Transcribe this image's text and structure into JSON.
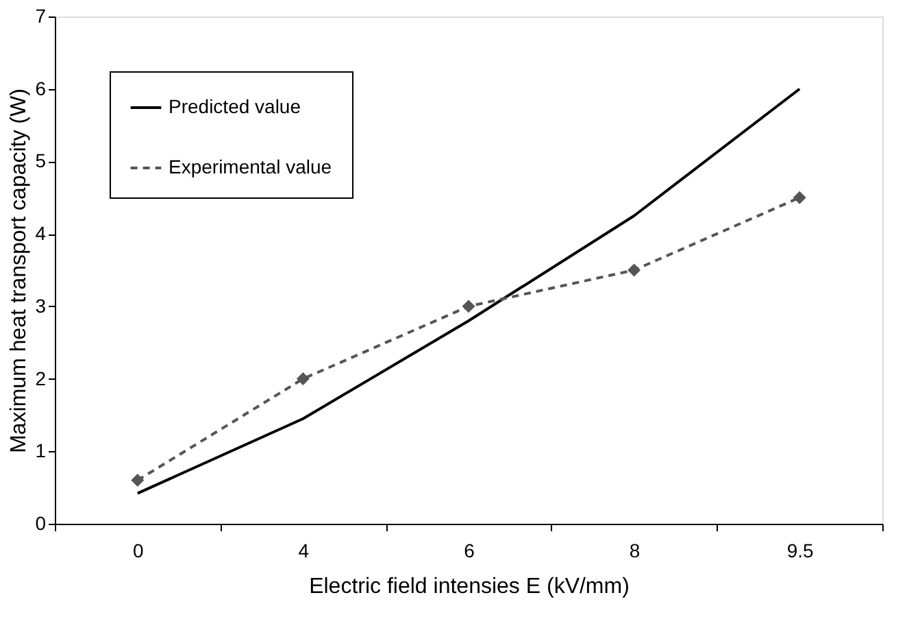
{
  "chart_data": {
    "type": "line",
    "xlabel": "Electric field intensies E (kV/mm)",
    "ylabel": "Maximum heat transport capacity (W)",
    "categories": [
      "0",
      "4",
      "6",
      "8",
      "9.5"
    ],
    "ylim": [
      0,
      7
    ],
    "yticks": [
      0,
      1,
      2,
      3,
      4,
      5,
      6,
      7
    ],
    "grid": false,
    "legend": "top left",
    "series": [
      {
        "name": "Predicted value",
        "color": "#000000",
        "values": [
          0.42,
          1.45,
          2.8,
          4.25,
          6.0
        ],
        "marker": "none",
        "line_style": "solid"
      },
      {
        "name": "Experimental value",
        "color": "#555555",
        "values": [
          0.6,
          2.0,
          3.0,
          3.5,
          4.5
        ],
        "marker": "diamond",
        "line_style": "dashed"
      }
    ]
  }
}
